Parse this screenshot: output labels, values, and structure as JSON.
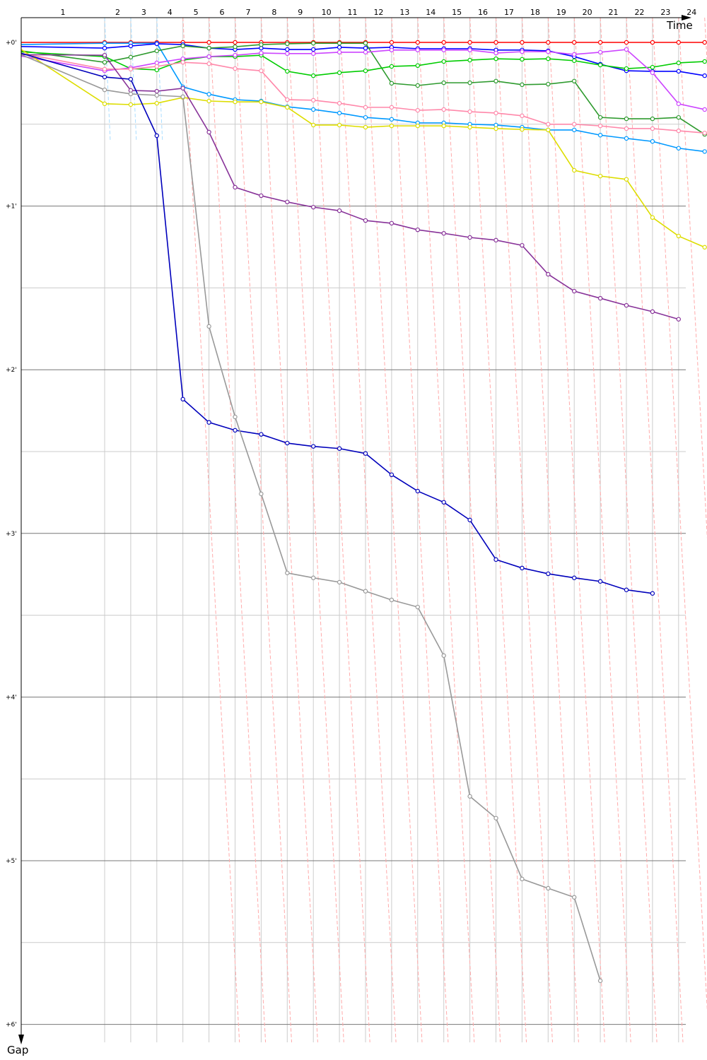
{
  "chart_data": {
    "type": "line",
    "xlabel": "Time",
    "ylabel": "Gap",
    "x_tick_labels": [
      "1",
      "2",
      "3",
      "4",
      "5",
      "6",
      "7",
      "8",
      "9",
      "10",
      "11",
      "12",
      "13",
      "14",
      "15",
      "16",
      "17",
      "18",
      "19",
      "20",
      "21",
      "22",
      "23",
      "24"
    ],
    "y_tick_labels": [
      "+0'",
      "+1'",
      "+2'",
      "+3'",
      "+4'",
      "+5'",
      "+6'"
    ],
    "y_unit": "seconds",
    "ylim": [
      0,
      360
    ],
    "xlim": [
      0,
      24
    ],
    "y_inverted": true,
    "grid": true,
    "x": "lap",
    "series": [
      {
        "color": "#ff0000",
        "values": [
          0,
          0,
          0,
          0,
          0,
          0,
          0,
          0,
          0,
          0,
          0,
          0,
          0,
          0,
          0,
          0,
          0,
          0,
          0,
          0,
          0,
          0,
          0,
          0,
          0
        ]
      },
      {
        "color": "#0099ff",
        "values": [
          0.8,
          0.3,
          0.3,
          0.3,
          16.3,
          19,
          21,
          21.5,
          23.6,
          24.6,
          25.9,
          27.5,
          28.2,
          29.5,
          29.5,
          30,
          30.3,
          31.1,
          32.1,
          32.1,
          34,
          35.2,
          36.3,
          38.8,
          40
        ]
      },
      {
        "color": "#0000ff",
        "values": [
          1.5,
          2.1,
          1.3,
          0.5,
          0.8,
          2.1,
          2.6,
          2.1,
          2.6,
          2.6,
          1.8,
          2.1,
          1.8,
          2.3,
          2.3,
          2.3,
          2.8,
          2.8,
          3.1,
          5.2,
          8,
          10.4,
          10.6,
          10.6,
          12.2
        ]
      },
      {
        "color": "#2e9a2e",
        "values": [
          3.1,
          7.3,
          5.4,
          3.1,
          1.3,
          2.1,
          1.6,
          0.8,
          0.5,
          0.3,
          0.3,
          0.3,
          15,
          15.8,
          14.8,
          14.8,
          14.2,
          15.5,
          15.3,
          14.2,
          27.5,
          28,
          28,
          27.5,
          33.7
        ]
      },
      {
        "color": "#00cc00",
        "values": [
          3.5,
          5.2,
          9.6,
          10.1,
          6.5,
          5.2,
          5.2,
          4.7,
          10.6,
          12.2,
          11.1,
          10.4,
          8.8,
          8.5,
          7,
          6.5,
          6,
          6.2,
          6,
          6.7,
          8.3,
          9.6,
          9.1,
          7.5,
          7
        ]
      },
      {
        "color": "#cc44ff",
        "values": [
          5,
          10.4,
          9.3,
          7.5,
          6,
          5.2,
          4.7,
          3.9,
          4.1,
          4.1,
          3.6,
          3.6,
          2.8,
          2.8,
          2.8,
          2.8,
          3.9,
          3.4,
          3.4,
          4.4,
          3.6,
          2.6,
          11.1,
          22.5,
          24.6
        ]
      },
      {
        "color": "#ff88aa",
        "values": [
          4,
          9.8,
          9.8,
          8.8,
          7.3,
          7.8,
          9.6,
          10.4,
          21,
          21.2,
          22.3,
          23.8,
          23.8,
          24.9,
          24.6,
          25.4,
          25.9,
          26.9,
          30,
          30,
          30.6,
          31.6,
          31.6,
          32.4,
          33.2
        ]
      },
      {
        "color": "#dddd00",
        "values": [
          2.6,
          22.5,
          22.8,
          22.3,
          20.2,
          21.5,
          21.8,
          21.8,
          23.8,
          30.3,
          30.3,
          31.1,
          30.6,
          30.6,
          30.6,
          31.1,
          31.6,
          31.9,
          32.1,
          46.9,
          49,
          50.2,
          64.2,
          71,
          75.1
        ]
      },
      {
        "color": "#883399",
        "values": [
          4.5,
          4.7,
          17.6,
          17.9,
          16.8,
          32.9,
          53.1,
          56.2,
          58.5,
          60.4,
          61.7,
          65.3,
          66.3,
          68.7,
          70,
          71.5,
          72.5,
          74.4,
          85,
          91.2,
          93.8,
          96.4,
          98.7,
          101.5
        ]
      },
      {
        "color": "#0000bb",
        "values": [
          4,
          12.7,
          13.5,
          34.2,
          130.8,
          139.3,
          142.2,
          143.7,
          146.9,
          148.1,
          148.9,
          150.7,
          158.5,
          164.5,
          168.6,
          175.1,
          189.6,
          192.7,
          194.8,
          196.3,
          197.6,
          200.7,
          202
        ]
      },
      {
        "color": "#999999",
        "values": [
          4.5,
          17.4,
          18.9,
          19.4,
          19.9,
          104.1,
          137.3,
          165.5,
          194.5,
          196.3,
          197.9,
          201.2,
          204.4,
          207,
          224.8,
          276.4,
          284.4,
          306.7,
          310.1,
          313.4,
          344
        ]
      }
    ]
  }
}
